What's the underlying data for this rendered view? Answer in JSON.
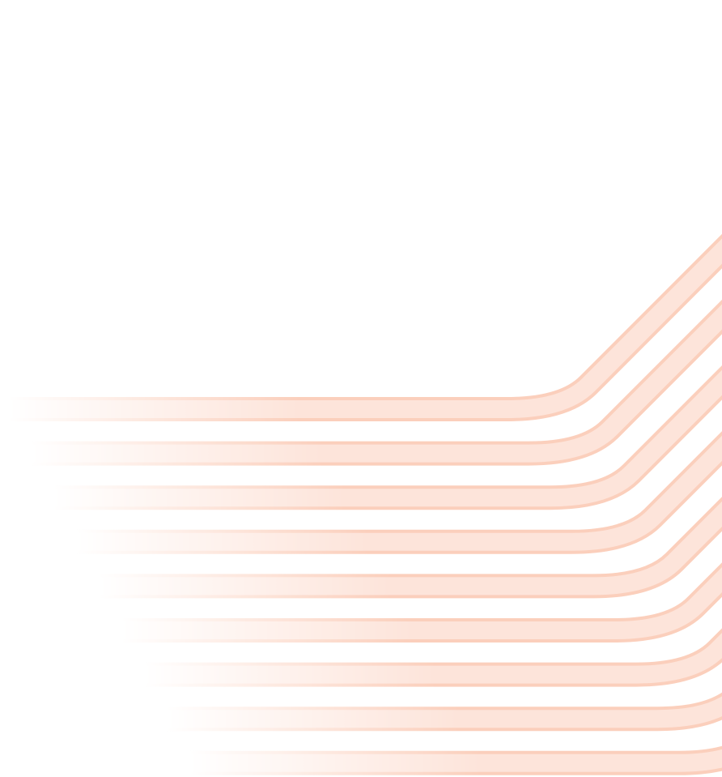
{
  "decoration": {
    "pattern": "stacked-stripe-bends",
    "stripe_count": 9,
    "colors": {
      "background": "#ffffff",
      "stripe_fill": "#fde4da",
      "stripe_edge": "#fbcfbc"
    }
  }
}
